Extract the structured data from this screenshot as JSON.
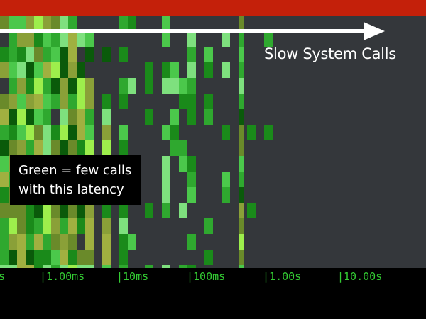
{
  "colors": {
    "top_bar": "#c4200a",
    "background": "#34373b",
    "arrow": "#ffffff",
    "tick_text": "#33cc33",
    "legend_box": "#000000",
    "legend_text": "#ffffff",
    "heat_palette": [
      "#0a5a0a",
      "#1a8a1a",
      "#2fa82f",
      "#4bc84b",
      "#7ee07e",
      "#9dee4c",
      "#6a8a2a",
      "#8aa038",
      "#a0b040"
    ]
  },
  "annotation": {
    "arrow_label": "Slow System Calls"
  },
  "legend": {
    "line1": "Green = few calls",
    "line2": "with this latency"
  },
  "chart_data": {
    "type": "heatmap",
    "title": "",
    "xlabel": "",
    "ylabel": "",
    "x_scale": "log",
    "x_unit": "latency",
    "grid": false,
    "tick_labels": [
      "s",
      "|1.00ms",
      "|10ms",
      "|100ms",
      "|1.00s",
      "|10.00s"
    ],
    "columns": [
      {
        "x": 0.0001,
        "density": 1.0
      },
      {
        "x": 0.0002,
        "density": 1.0
      },
      {
        "x": 0.0004,
        "density": 1.0
      },
      {
        "x": 0.0007,
        "density": 0.98
      },
      {
        "x": 0.001,
        "density": 0.97
      },
      {
        "x": 0.002,
        "density": 0.95
      },
      {
        "x": 0.004,
        "density": 0.9
      },
      {
        "x": 0.007,
        "density": 0.85
      },
      {
        "x": 0.01,
        "density": 0.6
      },
      {
        "x": 0.015,
        "density": 0.35
      },
      {
        "x": 0.025,
        "density": 0.2
      },
      {
        "x": 0.04,
        "density": 0.55
      },
      {
        "x": 0.06,
        "density": 0.25
      },
      {
        "x": 0.08,
        "density": 0.3
      },
      {
        "x": 0.1,
        "density": 0.45
      },
      {
        "x": 0.15,
        "density": 0.2
      },
      {
        "x": 0.25,
        "density": 0.15
      },
      {
        "x": 0.4,
        "density": 0.9
      },
      {
        "x": 0.6,
        "density": 0.1
      },
      {
        "x": 1.0,
        "density": 0.08
      },
      {
        "x": 2.0,
        "density": 0.07
      },
      {
        "x": 4.0,
        "density": 0.06
      },
      {
        "x": 8.0,
        "density": 0.05
      },
      {
        "x": 15.0,
        "density": 0.04
      },
      {
        "x": 30.0,
        "density": 0.04
      }
    ]
  }
}
